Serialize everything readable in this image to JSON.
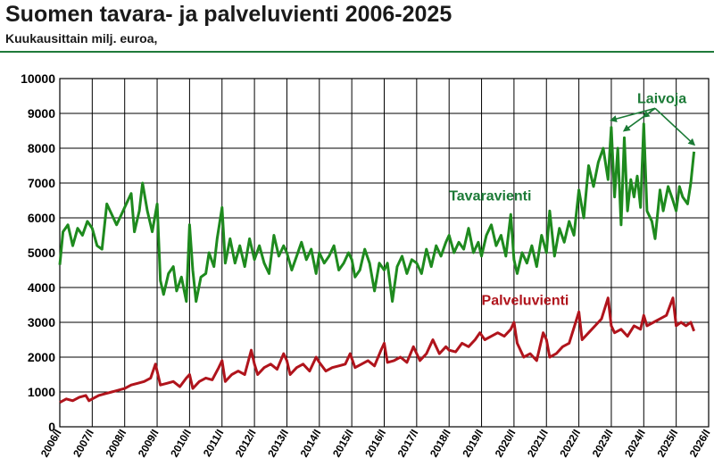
{
  "header": {
    "title": "Suomen tavara- ja palveluvienti 2006-2025",
    "subtitle": "Kuukausittain milj. euroa,"
  },
  "colors": {
    "goods": "#1e8a1e",
    "services": "#b0141c",
    "header_rule": "#1f7a3a"
  },
  "chart_data": {
    "type": "line",
    "title": "Suomen tavara- ja palveluvienti 2006-2025",
    "subtitle": "Kuukausittain milj. euroa,",
    "xlabel": "",
    "ylabel": "",
    "ylim": [
      0,
      10000
    ],
    "yticks": [
      "0",
      "1000",
      "2000",
      "3000",
      "4000",
      "5000",
      "6000",
      "7000",
      "8000",
      "9000",
      "10000"
    ],
    "xticks": [
      "2006/I",
      "2007/I",
      "2008/I",
      "2009/I",
      "2010/I",
      "2011/I",
      "2012/I",
      "2013/I",
      "2014/I",
      "2015/I",
      "2016/I",
      "2017/I",
      "2018/I",
      "2019/I",
      "2020/I",
      "2021/I",
      "2022/I",
      "2023/I",
      "2024/I",
      "2025/I",
      "2026/I"
    ],
    "grid": true,
    "series": [
      {
        "name": "Tavaravienti",
        "color": "#1e8a1e",
        "points": [
          [
            2006.0,
            4650
          ],
          [
            2006.1,
            5600
          ],
          [
            2006.25,
            5800
          ],
          [
            2006.4,
            5200
          ],
          [
            2006.55,
            5700
          ],
          [
            2006.7,
            5500
          ],
          [
            2006.85,
            5900
          ],
          [
            2007.0,
            5700
          ],
          [
            2007.15,
            5200
          ],
          [
            2007.3,
            5100
          ],
          [
            2007.45,
            6400
          ],
          [
            2007.6,
            6100
          ],
          [
            2007.75,
            5800
          ],
          [
            2007.9,
            6100
          ],
          [
            2008.05,
            6400
          ],
          [
            2008.2,
            6700
          ],
          [
            2008.3,
            5600
          ],
          [
            2008.45,
            6200
          ],
          [
            2008.55,
            7000
          ],
          [
            2008.7,
            6200
          ],
          [
            2008.85,
            5600
          ],
          [
            2009.0,
            6400
          ],
          [
            2009.1,
            4200
          ],
          [
            2009.2,
            3800
          ],
          [
            2009.35,
            4400
          ],
          [
            2009.5,
            4600
          ],
          [
            2009.6,
            3900
          ],
          [
            2009.75,
            4300
          ],
          [
            2009.9,
            3600
          ],
          [
            2010.0,
            5800
          ],
          [
            2010.1,
            4500
          ],
          [
            2010.2,
            3600
          ],
          [
            2010.35,
            4300
          ],
          [
            2010.5,
            4400
          ],
          [
            2010.6,
            5000
          ],
          [
            2010.75,
            4600
          ],
          [
            2010.85,
            5400
          ],
          [
            2011.0,
            6300
          ],
          [
            2011.1,
            4700
          ],
          [
            2011.25,
            5400
          ],
          [
            2011.4,
            4700
          ],
          [
            2011.55,
            5200
          ],
          [
            2011.7,
            4600
          ],
          [
            2011.85,
            5400
          ],
          [
            2012.0,
            4800
          ],
          [
            2012.15,
            5200
          ],
          [
            2012.3,
            4700
          ],
          [
            2012.45,
            4400
          ],
          [
            2012.6,
            5500
          ],
          [
            2012.75,
            4900
          ],
          [
            2012.9,
            5200
          ],
          [
            2013.0,
            5000
          ],
          [
            2013.15,
            4500
          ],
          [
            2013.3,
            4900
          ],
          [
            2013.45,
            5300
          ],
          [
            2013.6,
            4800
          ],
          [
            2013.75,
            5100
          ],
          [
            2013.9,
            4400
          ],
          [
            2014.0,
            5000
          ],
          [
            2014.15,
            4700
          ],
          [
            2014.3,
            4900
          ],
          [
            2014.45,
            5200
          ],
          [
            2014.6,
            4500
          ],
          [
            2014.75,
            4700
          ],
          [
            2014.9,
            5000
          ],
          [
            2015.0,
            4800
          ],
          [
            2015.1,
            4300
          ],
          [
            2015.25,
            4500
          ],
          [
            2015.4,
            5100
          ],
          [
            2015.55,
            4700
          ],
          [
            2015.7,
            3900
          ],
          [
            2015.85,
            4700
          ],
          [
            2016.0,
            4500
          ],
          [
            2016.1,
            4700
          ],
          [
            2016.25,
            3600
          ],
          [
            2016.4,
            4600
          ],
          [
            2016.55,
            4900
          ],
          [
            2016.7,
            4400
          ],
          [
            2016.85,
            4800
          ],
          [
            2017.0,
            4700
          ],
          [
            2017.15,
            4400
          ],
          [
            2017.3,
            5100
          ],
          [
            2017.45,
            4600
          ],
          [
            2017.6,
            5200
          ],
          [
            2017.75,
            4900
          ],
          [
            2017.9,
            5300
          ],
          [
            2018.0,
            5500
          ],
          [
            2018.15,
            5000
          ],
          [
            2018.3,
            5300
          ],
          [
            2018.45,
            5100
          ],
          [
            2018.6,
            5700
          ],
          [
            2018.75,
            5000
          ],
          [
            2018.9,
            5300
          ],
          [
            2019.0,
            4900
          ],
          [
            2019.15,
            5500
          ],
          [
            2019.3,
            5800
          ],
          [
            2019.45,
            5200
          ],
          [
            2019.6,
            5500
          ],
          [
            2019.75,
            4900
          ],
          [
            2019.9,
            6100
          ],
          [
            2020.0,
            4800
          ],
          [
            2020.1,
            4400
          ],
          [
            2020.25,
            5000
          ],
          [
            2020.4,
            4700
          ],
          [
            2020.55,
            5200
          ],
          [
            2020.7,
            4600
          ],
          [
            2020.85,
            5500
          ],
          [
            2021.0,
            5000
          ],
          [
            2021.1,
            6200
          ],
          [
            2021.25,
            4900
          ],
          [
            2021.4,
            5700
          ],
          [
            2021.55,
            5300
          ],
          [
            2021.7,
            5900
          ],
          [
            2021.85,
            5500
          ],
          [
            2022.0,
            6800
          ],
          [
            2022.15,
            6000
          ],
          [
            2022.3,
            7500
          ],
          [
            2022.45,
            6900
          ],
          [
            2022.6,
            7600
          ],
          [
            2022.75,
            8000
          ],
          [
            2022.9,
            7100
          ],
          [
            2023.0,
            8600
          ],
          [
            2023.1,
            6600
          ],
          [
            2023.2,
            8000
          ],
          [
            2023.3,
            5800
          ],
          [
            2023.4,
            8300
          ],
          [
            2023.5,
            6200
          ],
          [
            2023.6,
            7100
          ],
          [
            2023.7,
            6600
          ],
          [
            2023.8,
            7200
          ],
          [
            2023.9,
            6300
          ],
          [
            2024.0,
            8700
          ],
          [
            2024.1,
            6200
          ],
          [
            2024.25,
            5900
          ],
          [
            2024.35,
            5400
          ],
          [
            2024.5,
            6800
          ],
          [
            2024.6,
            6200
          ],
          [
            2024.75,
            6900
          ],
          [
            2024.9,
            6500
          ],
          [
            2025.0,
            6200
          ],
          [
            2025.1,
            6900
          ],
          [
            2025.2,
            6600
          ],
          [
            2025.35,
            6400
          ],
          [
            2025.45,
            7000
          ],
          [
            2025.55,
            7900
          ]
        ]
      },
      {
        "name": "Palveluvienti",
        "color": "#b0141c",
        "points": [
          [
            2006.0,
            700
          ],
          [
            2006.2,
            800
          ],
          [
            2006.4,
            750
          ],
          [
            2006.6,
            850
          ],
          [
            2006.8,
            900
          ],
          [
            2006.9,
            750
          ],
          [
            2007.0,
            800
          ],
          [
            2007.2,
            900
          ],
          [
            2007.4,
            950
          ],
          [
            2007.6,
            1000
          ],
          [
            2007.8,
            1050
          ],
          [
            2008.0,
            1100
          ],
          [
            2008.2,
            1200
          ],
          [
            2008.4,
            1250
          ],
          [
            2008.6,
            1300
          ],
          [
            2008.8,
            1400
          ],
          [
            2008.95,
            1800
          ],
          [
            2009.1,
            1200
          ],
          [
            2009.3,
            1250
          ],
          [
            2009.5,
            1300
          ],
          [
            2009.7,
            1150
          ],
          [
            2009.9,
            1400
          ],
          [
            2010.0,
            1500
          ],
          [
            2010.1,
            1100
          ],
          [
            2010.3,
            1300
          ],
          [
            2010.5,
            1400
          ],
          [
            2010.7,
            1350
          ],
          [
            2010.9,
            1700
          ],
          [
            2011.0,
            1900
          ],
          [
            2011.1,
            1300
          ],
          [
            2011.3,
            1500
          ],
          [
            2011.5,
            1600
          ],
          [
            2011.7,
            1500
          ],
          [
            2011.9,
            2200
          ],
          [
            2012.0,
            1800
          ],
          [
            2012.1,
            1500
          ],
          [
            2012.3,
            1700
          ],
          [
            2012.5,
            1800
          ],
          [
            2012.7,
            1650
          ],
          [
            2012.9,
            2100
          ],
          [
            2013.0,
            1900
          ],
          [
            2013.1,
            1500
          ],
          [
            2013.3,
            1700
          ],
          [
            2013.5,
            1800
          ],
          [
            2013.7,
            1600
          ],
          [
            2013.9,
            2000
          ],
          [
            2014.0,
            1850
          ],
          [
            2014.2,
            1600
          ],
          [
            2014.4,
            1700
          ],
          [
            2014.6,
            1750
          ],
          [
            2014.8,
            1800
          ],
          [
            2014.95,
            2100
          ],
          [
            2015.1,
            1700
          ],
          [
            2015.3,
            1800
          ],
          [
            2015.5,
            1900
          ],
          [
            2015.7,
            1750
          ],
          [
            2015.9,
            2200
          ],
          [
            2016.0,
            2400
          ],
          [
            2016.1,
            1850
          ],
          [
            2016.3,
            1900
          ],
          [
            2016.5,
            2000
          ],
          [
            2016.7,
            1850
          ],
          [
            2016.9,
            2300
          ],
          [
            2017.0,
            2100
          ],
          [
            2017.1,
            1900
          ],
          [
            2017.3,
            2100
          ],
          [
            2017.5,
            2500
          ],
          [
            2017.7,
            2100
          ],
          [
            2017.9,
            2300
          ],
          [
            2018.0,
            2200
          ],
          [
            2018.2,
            2150
          ],
          [
            2018.4,
            2400
          ],
          [
            2018.6,
            2300
          ],
          [
            2018.8,
            2500
          ],
          [
            2018.95,
            2700
          ],
          [
            2019.1,
            2500
          ],
          [
            2019.3,
            2600
          ],
          [
            2019.5,
            2700
          ],
          [
            2019.7,
            2600
          ],
          [
            2019.9,
            2800
          ],
          [
            2020.0,
            3000
          ],
          [
            2020.1,
            2400
          ],
          [
            2020.3,
            2000
          ],
          [
            2020.5,
            2100
          ],
          [
            2020.7,
            1900
          ],
          [
            2020.9,
            2700
          ],
          [
            2021.0,
            2500
          ],
          [
            2021.1,
            2000
          ],
          [
            2021.3,
            2100
          ],
          [
            2021.5,
            2300
          ],
          [
            2021.7,
            2400
          ],
          [
            2021.9,
            3000
          ],
          [
            2022.0,
            3300
          ],
          [
            2022.1,
            2500
          ],
          [
            2022.3,
            2700
          ],
          [
            2022.5,
            2900
          ],
          [
            2022.7,
            3100
          ],
          [
            2022.9,
            3700
          ],
          [
            2023.0,
            2900
          ],
          [
            2023.1,
            2700
          ],
          [
            2023.3,
            2800
          ],
          [
            2023.5,
            2600
          ],
          [
            2023.7,
            2900
          ],
          [
            2023.9,
            2800
          ],
          [
            2024.0,
            3200
          ],
          [
            2024.1,
            2900
          ],
          [
            2024.3,
            3000
          ],
          [
            2024.5,
            3100
          ],
          [
            2024.7,
            3200
          ],
          [
            2024.9,
            3700
          ],
          [
            2025.0,
            2900
          ],
          [
            2025.15,
            3000
          ],
          [
            2025.3,
            2900
          ],
          [
            2025.45,
            3000
          ],
          [
            2025.55,
            2750
          ]
        ]
      }
    ],
    "annotations": [
      {
        "text": "Tavaravienti",
        "color": "#1b7a36",
        "x": 2018.0,
        "y": 6500
      },
      {
        "text": "Palveluvienti",
        "color": "#b0141c",
        "x": 2019.0,
        "y": 3500
      },
      {
        "text": "Laivoja",
        "color": "#1b7a36",
        "x": 2023.8,
        "y": 9300,
        "arrows_to": [
          [
            2023.0,
            8600
          ],
          [
            2023.4,
            8300
          ],
          [
            2024.0,
            8700
          ],
          [
            2025.55,
            7900
          ]
        ]
      }
    ]
  }
}
